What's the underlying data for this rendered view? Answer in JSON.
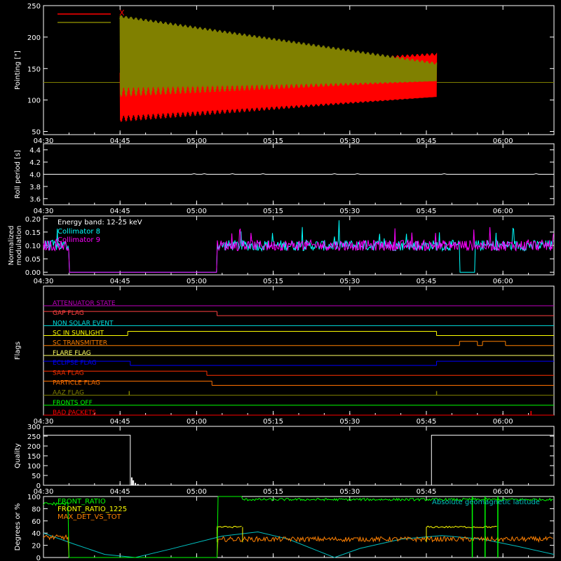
{
  "colors": {
    "background": "#000000",
    "axes": "#ffffff",
    "x_pointing": "#ff0000",
    "y_pointing": "#808000",
    "collimator8": "#00ffff",
    "collimator9": "#ff00ff",
    "front_ratio": "#00ff00",
    "front_ratio_1225": "#ffff00",
    "max_det_vs_tot": "#ff8000",
    "geomag": "#00c0c0"
  },
  "time_axis": {
    "range_minutes": [
      0,
      100
    ],
    "ticks": [
      {
        "minute": 0,
        "label": "04:30"
      },
      {
        "minute": 15,
        "label": "04:45"
      },
      {
        "minute": 30,
        "label": "05:00"
      },
      {
        "minute": 45,
        "label": "05:15"
      },
      {
        "minute": 60,
        "label": "05:30"
      },
      {
        "minute": 75,
        "label": "05:45"
      },
      {
        "minute": 90,
        "label": "06:00"
      }
    ]
  },
  "chart_data": [
    {
      "id": "pointing",
      "type": "line",
      "ylabel": "Pointing [\"]",
      "ylim": [
        45,
        250
      ],
      "yticks": [
        50,
        100,
        150,
        200,
        250
      ],
      "legend": [
        "X",
        "Y"
      ],
      "legend_placement": "top-left",
      "series": [
        {
          "name": "X",
          "color": "#ff0000",
          "baseline": 128,
          "active_minutes": [
            15,
            77
          ],
          "envelope_start": [
            65,
            145
          ],
          "envelope_end": [
            105,
            175
          ]
        },
        {
          "name": "Y",
          "color": "#808000",
          "baseline": 128,
          "active_minutes": [
            15,
            77
          ],
          "envelope_start": [
            105,
            235
          ],
          "envelope_end": [
            130,
            160
          ]
        }
      ]
    },
    {
      "id": "roll_period",
      "type": "line",
      "ylabel": "Roll period [s]",
      "ylim": [
        3.5,
        4.5
      ],
      "yticks": [
        "3.6",
        "3.8",
        "4.0",
        "4.2",
        "4.4"
      ],
      "series": [
        {
          "name": "",
          "value": 4.0
        }
      ]
    },
    {
      "id": "modulation",
      "type": "line",
      "ylabel": "Normalized modulation",
      "ylim": [
        -0.01,
        0.21
      ],
      "yticks": [
        "0.00",
        "0.05",
        "0.10",
        "0.15",
        "0.20"
      ],
      "annotation": "Energy band: 12-25 keV",
      "legend": [
        "Collimator 8",
        "Collimator 9"
      ],
      "legend_placement": "top-left",
      "series": [
        {
          "name": "Collimator 8",
          "color": "#00ffff",
          "mean": 0.1,
          "off_minutes": [
            [
              5,
              34
            ],
            [
              81.5,
              84.5
            ]
          ]
        },
        {
          "name": "Collimator 9",
          "color": "#ff00ff",
          "mean": 0.1,
          "off_minutes": [
            [
              5,
              34
            ]
          ]
        }
      ]
    },
    {
      "id": "flags",
      "type": "line",
      "ylabel": "Flags",
      "series": [
        {
          "name": "ATTENUATOR STATE",
          "color": "#c000c0",
          "segments": [
            [
              0,
              0,
              100
            ]
          ]
        },
        {
          "name": "GAP FLAG",
          "color": "#ff4040",
          "segments": [
            [
              1,
              0,
              34
            ],
            [
              0,
              34,
              100
            ]
          ]
        },
        {
          "name": "NON SOLAR EVENT",
          "color": "#00e0e0",
          "segments": [
            [
              0,
              0,
              100
            ]
          ]
        },
        {
          "name": "SC IN SUNLIGHT",
          "color": "#ffff00",
          "segments": [
            [
              0,
              0,
              16.5
            ],
            [
              1,
              16.5,
              77
            ],
            [
              0,
              77,
              100
            ]
          ]
        },
        {
          "name": "SC TRANSMITTER",
          "color": "#ff8000",
          "segments": [
            [
              0,
              0,
              81.5
            ],
            [
              1,
              81.5,
              85
            ],
            [
              0,
              85,
              86
            ],
            [
              1,
              86,
              90.5
            ],
            [
              0,
              90.5,
              100
            ]
          ]
        },
        {
          "name": "FLARE FLAG",
          "color": "#ffff60",
          "segments": [
            [
              0,
              0,
              100
            ]
          ]
        },
        {
          "name": "ECLIPSE FLAG",
          "color": "#0000ff",
          "segments": [
            [
              1,
              0,
              17
            ],
            [
              0,
              17,
              77
            ],
            [
              1,
              77,
              100
            ]
          ]
        },
        {
          "name": "SAA FLAG",
          "color": "#ff3000",
          "segments": [
            [
              1,
              0,
              32
            ],
            [
              0,
              32,
              100
            ]
          ]
        },
        {
          "name": "PARTICLE FLAG",
          "color": "#ff7000",
          "segments": [
            [
              1,
              0,
              33
            ],
            [
              0,
              33,
              100
            ]
          ]
        },
        {
          "name": "AAZ FLAG",
          "color": "#808000",
          "segments": [
            [
              0,
              0,
              100
            ]
          ],
          "spikes": [
            16.8,
            77
          ]
        },
        {
          "name": "FRONTS OFF",
          "color": "#00ff00",
          "segments": [
            [
              0,
              0,
              100
            ]
          ]
        },
        {
          "name": "BAD PACKETS",
          "color": "#ff0000",
          "segments": [
            [
              0,
              0,
              100
            ]
          ],
          "spikes": [
            95.5
          ]
        }
      ]
    },
    {
      "id": "quality",
      "type": "line",
      "ylabel": "Quality",
      "ylim": [
        0,
        300
      ],
      "yticks": [
        0,
        50,
        100,
        150,
        200,
        250,
        300
      ],
      "series": [
        {
          "name": "",
          "points": [
            [
              0,
              255
            ],
            [
              17,
              255
            ],
            [
              17,
              0
            ],
            [
              76,
              0
            ],
            [
              76,
              255
            ],
            [
              100,
              255
            ]
          ],
          "spikes": [
            [
              17.3,
              40
            ],
            [
              17.6,
              25
            ],
            [
              18,
              12
            ],
            [
              18.5,
              6
            ]
          ]
        }
      ]
    },
    {
      "id": "ratios",
      "type": "line",
      "ylabel": "Degrees or %",
      "ylim": [
        0,
        100
      ],
      "yticks": [
        0,
        20,
        40,
        60,
        80,
        100
      ],
      "legend": [
        "FRONT_RATIO",
        "FRONT_RATIO_1225",
        "MAX_DET_VS_TOT"
      ],
      "legend_placement": "top-left",
      "annotation": "Absolute geomagnetic latitude",
      "series": [
        {
          "name": "FRONT_RATIO",
          "color": "#00ff00",
          "level_before": 88,
          "level_after": 95,
          "change_minutes": [
            5,
            34,
            39
          ]
        },
        {
          "name": "FRONT_RATIO_1225",
          "color": "#ffff00",
          "level": 50,
          "active_minutes": [
            [
              34,
              39
            ],
            [
              75,
              89
            ]
          ]
        },
        {
          "name": "MAX_DET_VS_TOT",
          "color": "#ff8000",
          "level_before": 33,
          "level_after": 30
        },
        {
          "name": "Absolute geomagnetic latitude",
          "color": "#00c0c0",
          "points": [
            [
              0,
              40
            ],
            [
              6,
              22
            ],
            [
              12,
              5
            ],
            [
              18,
              0
            ],
            [
              25,
              14
            ],
            [
              35,
              35
            ],
            [
              42,
              42
            ],
            [
              48,
              30
            ],
            [
              54,
              10
            ],
            [
              57,
              0
            ],
            [
              62,
              15
            ],
            [
              70,
              30
            ],
            [
              78,
              36
            ],
            [
              86,
              30
            ],
            [
              93,
              18
            ],
            [
              100,
              5
            ]
          ]
        }
      ]
    }
  ]
}
